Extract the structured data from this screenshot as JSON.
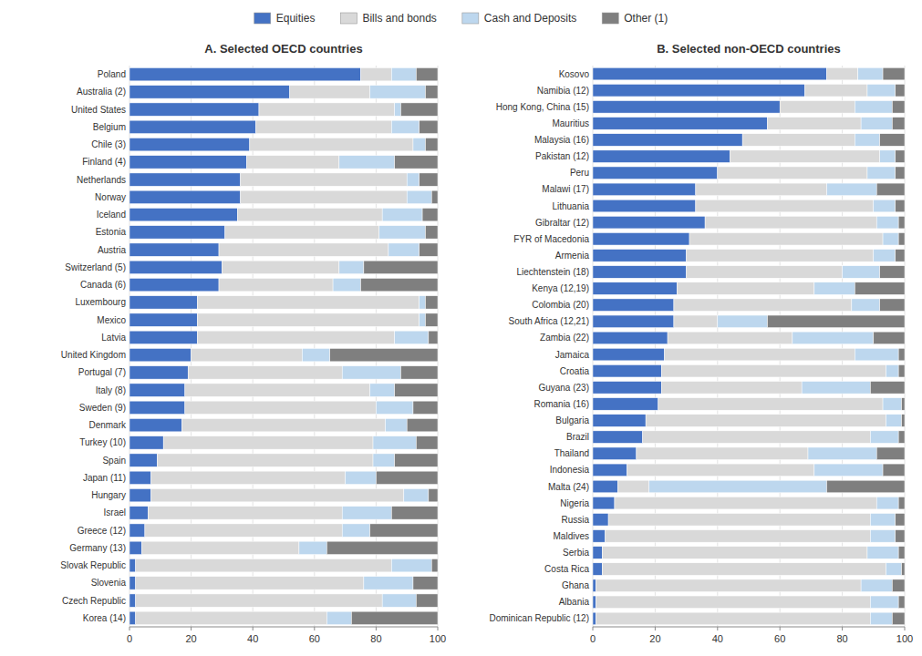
{
  "chart_data": [
    {
      "type": "bar",
      "orientation": "horizontal",
      "stacked": true,
      "grid": true,
      "title": "A. Selected OECD countries",
      "categories": [
        "Poland",
        "Australia (2)",
        "United States",
        "Belgium",
        "Chile (3)",
        "Finland (4)",
        "Netherlands",
        "Norway",
        "Iceland",
        "Estonia",
        "Austria",
        "Switzerland (5)",
        "Canada (6)",
        "Luxembourg",
        "Mexico",
        "Latvia",
        "United Kingdom",
        "Portugal (7)",
        "Italy (8)",
        "Sweden (9)",
        "Denmark",
        "Turkey (10)",
        "Spain",
        "Japan (11)",
        "Hungary",
        "Israel",
        "Greece (12)",
        "Germany (13)",
        "Slovak Republic",
        "Slovenia",
        "Czech Republic",
        "Korea (14)"
      ],
      "series": [
        {
          "name": "Equities",
          "color": "#4472C4",
          "values": [
            75,
            52,
            42,
            41,
            39,
            38,
            36,
            36,
            35,
            31,
            29,
            30,
            29,
            22,
            22,
            22,
            20,
            19,
            18,
            18,
            17,
            11,
            9,
            7,
            7,
            6,
            5,
            4,
            2,
            2,
            2,
            2
          ]
        },
        {
          "name": "Bills and bonds",
          "color": "#D9D9D9",
          "values": [
            10,
            26,
            44,
            44,
            53,
            30,
            54,
            54,
            47,
            50,
            55,
            38,
            37,
            72,
            72,
            64,
            36,
            50,
            60,
            62,
            66,
            68,
            70,
            63,
            82,
            63,
            64,
            51,
            83,
            74,
            80,
            62
          ]
        },
        {
          "name": "Cash and Deposits",
          "color": "#BDD7EE",
          "values": [
            8,
            18,
            2,
            9,
            4,
            18,
            4,
            8,
            13,
            15,
            10,
            8,
            9,
            2,
            2,
            11,
            9,
            19,
            8,
            12,
            7,
            14,
            7,
            10,
            8,
            16,
            9,
            9,
            13,
            16,
            11,
            8
          ]
        },
        {
          "name": "Other (1)",
          "color": "#7F7F7F",
          "values": [
            7,
            4,
            12,
            6,
            4,
            14,
            6,
            2,
            5,
            4,
            6,
            24,
            25,
            4,
            4,
            3,
            35,
            12,
            14,
            8,
            10,
            7,
            14,
            20,
            3,
            15,
            22,
            36,
            2,
            8,
            7,
            28
          ]
        }
      ],
      "xlim": [
        0,
        100
      ],
      "xticks": [
        0,
        20,
        40,
        60,
        80,
        100
      ]
    },
    {
      "type": "bar",
      "orientation": "horizontal",
      "stacked": true,
      "grid": true,
      "title": "B. Selected non-OECD countries",
      "categories": [
        "Kosovo",
        "Namibia (12)",
        "Hong Kong, China (15)",
        "Mauritius",
        "Malaysia (16)",
        "Pakistan (12)",
        "Peru",
        "Malawi (17)",
        "Lithuania",
        "Gibraltar (12)",
        "FYR of Macedonia",
        "Armenia",
        "Liechtenstein (18)",
        "Kenya (12,19)",
        "Colombia (20)",
        "South Africa (12,21)",
        "Zambia (22)",
        "Jamaica",
        "Croatia",
        "Guyana (23)",
        "Romania (16)",
        "Bulgaria",
        "Brazil",
        "Thailand",
        "Indonesia",
        "Malta (24)",
        "Nigeria",
        "Russia",
        "Maldives",
        "Serbia",
        "Costa Rica",
        "Ghana",
        "Albania",
        "Dominican Republic (12)"
      ],
      "series": [
        {
          "color": "#4472C4",
          "values": [
            75,
            68,
            60,
            56,
            48,
            44,
            40,
            33,
            33,
            36,
            31,
            30,
            30,
            27,
            26,
            26,
            24,
            23,
            22,
            22,
            21,
            17,
            16,
            14,
            11,
            8,
            7,
            5,
            4,
            3,
            3,
            1,
            1,
            1
          ]
        },
        {
          "color": "#D9D9D9",
          "values": [
            10,
            20,
            24,
            30,
            36,
            48,
            48,
            42,
            57,
            55,
            62,
            60,
            50,
            44,
            57,
            14,
            40,
            61,
            72,
            45,
            72,
            77,
            73,
            55,
            60,
            10,
            84,
            84,
            85,
            85,
            91,
            85,
            88,
            88
          ]
        },
        {
          "color": "#BDD7EE",
          "values": [
            8,
            9,
            12,
            10,
            8,
            5,
            9,
            16,
            7,
            7,
            5,
            7,
            12,
            13,
            9,
            16,
            26,
            14,
            4,
            22,
            6,
            5,
            9,
            22,
            22,
            57,
            7,
            8,
            8,
            10,
            5,
            10,
            9,
            7
          ]
        },
        {
          "color": "#7F7F7F",
          "values": [
            7,
            3,
            4,
            4,
            8,
            3,
            3,
            9,
            3,
            2,
            2,
            3,
            8,
            16,
            8,
            44,
            10,
            2,
            2,
            11,
            1,
            1,
            2,
            9,
            7,
            25,
            2,
            3,
            3,
            2,
            1,
            4,
            2,
            4
          ]
        }
      ],
      "xlim": [
        0,
        100
      ],
      "xticks": [
        0,
        20,
        40,
        60,
        80,
        100
      ]
    }
  ]
}
